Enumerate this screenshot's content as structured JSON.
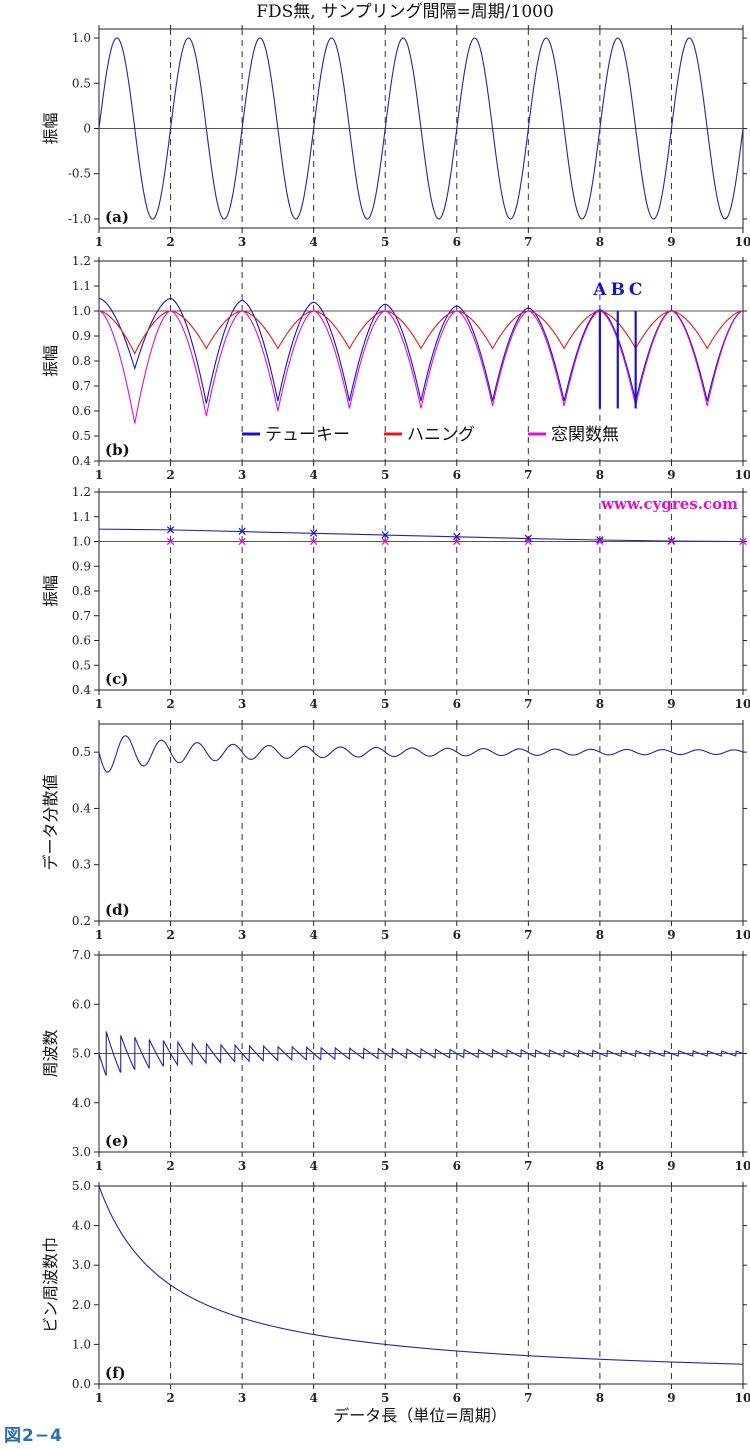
{
  "figure": {
    "title": "FDS無, サンプリング間隔=周期/1000",
    "xlabel": "データ長（単位=周期）",
    "caption": "図2−4",
    "watermark": "www.cygres.com",
    "colors": {
      "tukey": "#1515c8",
      "hanning": "#e81818",
      "none": "#e010d0",
      "curve": "#2323b0",
      "axis": "#222222",
      "grid": "#333333"
    }
  },
  "chart_data": [
    {
      "id": "a",
      "type": "line",
      "tag": "(a)",
      "ylabel": "振幅",
      "xlim": [
        1,
        10
      ],
      "ylim": [
        -1.1,
        1.1
      ],
      "xticks": [
        1,
        2,
        3,
        4,
        5,
        6,
        7,
        8,
        9,
        10
      ],
      "yticks": [
        -1.0,
        -0.5,
        0,
        0.5,
        1.0
      ],
      "ytick_labels": [
        "-1.0",
        "-0.5",
        "0",
        "0.5",
        "1.0"
      ],
      "hline": 0,
      "grid_x": "dashed",
      "series": [
        {
          "function": "sin(2*pi*x)",
          "x_range": [
            1,
            10
          ],
          "color": "#2323b0"
        }
      ]
    },
    {
      "id": "b",
      "type": "line",
      "tag": "(b)",
      "ylabel": "振幅",
      "xlim": [
        1,
        10
      ],
      "ylim": [
        0.4,
        1.2
      ],
      "xticks": [
        1,
        2,
        3,
        4,
        5,
        6,
        7,
        8,
        9,
        10
      ],
      "yticks": [
        0.4,
        0.5,
        0.6,
        0.7,
        0.8,
        0.9,
        1.0,
        1.1,
        1.2
      ],
      "ytick_labels": [
        "0.4",
        "0.5",
        "0.6",
        "0.7",
        "0.8",
        "0.9",
        "1.0",
        "1.1",
        "1.2"
      ],
      "hline": 1.0,
      "grid_x": "dashed",
      "legend": [
        {
          "label": "テューキー",
          "color": "#1515c8"
        },
        {
          "label": "ハニング",
          "color": "#e81818"
        },
        {
          "label": "窓関数無",
          "color": "#e010d0"
        }
      ],
      "markers": [
        {
          "label": "A",
          "x": 8.0
        },
        {
          "label": "B",
          "x": 8.25
        },
        {
          "label": "C",
          "x": 8.5
        }
      ],
      "marker_line_bottom": 0.61,
      "series": [
        {
          "name": "テューキー",
          "color": "#1515c8",
          "peaks": [
            [
              1,
              1.05
            ],
            [
              2,
              1.05
            ],
            [
              3,
              1.042
            ],
            [
              4,
              1.035
            ],
            [
              5,
              1.027
            ],
            [
              6,
              1.02
            ],
            [
              7,
              1.012
            ],
            [
              8,
              1.005
            ],
            [
              9,
              1.002
            ],
            [
              10,
              1.0
            ]
          ],
          "troughs": [
            [
              1.5,
              0.77
            ],
            [
              2.5,
              0.63
            ],
            [
              3.5,
              0.64
            ],
            [
              4.5,
              0.64
            ],
            [
              5.5,
              0.64
            ],
            [
              6.5,
              0.64
            ],
            [
              7.5,
              0.64
            ],
            [
              8.5,
              0.64
            ],
            [
              9.5,
              0.64
            ]
          ]
        },
        {
          "name": "ハニング",
          "color": "#e81818",
          "peaks": [
            [
              1,
              1.0
            ],
            [
              2,
              1.0
            ],
            [
              3,
              1.0
            ],
            [
              4,
              1.0
            ],
            [
              5,
              1.0
            ],
            [
              6,
              1.0
            ],
            [
              7,
              1.0
            ],
            [
              8,
              1.0
            ],
            [
              9,
              1.0
            ],
            [
              10,
              1.0
            ]
          ],
          "troughs": [
            [
              1.5,
              0.83
            ],
            [
              2.5,
              0.85
            ],
            [
              3.5,
              0.85
            ],
            [
              4.5,
              0.85
            ],
            [
              5.5,
              0.85
            ],
            [
              6.5,
              0.85
            ],
            [
              7.5,
              0.85
            ],
            [
              8.5,
              0.85
            ],
            [
              9.5,
              0.85
            ]
          ]
        },
        {
          "name": "窓関数無",
          "color": "#e010d0",
          "peaks": [
            [
              1,
              1.0
            ],
            [
              2,
              1.0
            ],
            [
              3,
              1.0
            ],
            [
              4,
              1.0
            ],
            [
              5,
              1.0
            ],
            [
              6,
              1.0
            ],
            [
              7,
              1.0
            ],
            [
              8,
              1.0
            ],
            [
              9,
              1.0
            ],
            [
              10,
              1.0
            ]
          ],
          "troughs": [
            [
              1.5,
              0.55
            ],
            [
              2.5,
              0.58
            ],
            [
              3.5,
              0.6
            ],
            [
              4.5,
              0.61
            ],
            [
              5.5,
              0.61
            ],
            [
              6.5,
              0.62
            ],
            [
              7.5,
              0.62
            ],
            [
              8.5,
              0.62
            ],
            [
              9.5,
              0.62
            ]
          ]
        }
      ]
    },
    {
      "id": "c",
      "type": "scatter",
      "tag": "(c)",
      "ylabel": "振幅",
      "xlim": [
        1,
        10
      ],
      "ylim": [
        0.4,
        1.2
      ],
      "xticks": [
        1,
        2,
        3,
        4,
        5,
        6,
        7,
        8,
        9,
        10
      ],
      "yticks": [
        0.4,
        0.5,
        0.6,
        0.7,
        0.8,
        0.9,
        1.0,
        1.1,
        1.2
      ],
      "ytick_labels": [
        "0.4",
        "0.5",
        "0.6",
        "0.7",
        "0.8",
        "0.9",
        "1.0",
        "1.1",
        "1.2"
      ],
      "hline": 1.0,
      "grid_x": "dashed",
      "envelope": {
        "color": "#2323b0",
        "points": [
          [
            1,
            1.05
          ],
          [
            2,
            1.047
          ],
          [
            3,
            1.04
          ],
          [
            4,
            1.033
          ],
          [
            5,
            1.026
          ],
          [
            6,
            1.019
          ],
          [
            7,
            1.012
          ],
          [
            8,
            1.006
          ],
          [
            9,
            1.002
          ],
          [
            10,
            1.0
          ]
        ]
      },
      "series": [
        {
          "name": "テューキー",
          "color": "#1515c8",
          "x": [
            2,
            3,
            4,
            5,
            6,
            7,
            8,
            9
          ],
          "y": [
            1.047,
            1.041,
            1.034,
            1.027,
            1.02,
            1.013,
            1.007,
            1.003
          ]
        },
        {
          "name": "窓関数無",
          "color": "#e010d0",
          "x": [
            2,
            3,
            4,
            5,
            6,
            7,
            8,
            9,
            10
          ],
          "y": [
            1.0,
            1.0,
            1.0,
            1.0,
            1.0,
            1.0,
            1.0,
            1.0,
            1.0
          ]
        }
      ]
    },
    {
      "id": "d",
      "type": "line",
      "tag": "(d)",
      "ylabel": "データ分散値",
      "xlim": [
        1,
        10
      ],
      "ylim": [
        0.2,
        0.55
      ],
      "xticks": [
        1,
        2,
        3,
        4,
        5,
        6,
        7,
        8,
        9,
        10
      ],
      "yticks": [
        0.2,
        0.3,
        0.4,
        0.5
      ],
      "ytick_labels": [
        "0.2",
        "0.3",
        "0.4",
        "0.5"
      ],
      "grid_x": "dashed",
      "series": [
        {
          "function": "0.5 - sin(4*pi*x)/(8*pi*x)",
          "x_range": [
            1,
            10
          ],
          "color": "#2323b0"
        }
      ]
    },
    {
      "id": "e",
      "type": "line",
      "tag": "(e)",
      "ylabel": "周波数",
      "xlim": [
        1,
        10
      ],
      "ylim": [
        3.0,
        7.0
      ],
      "xticks": [
        1,
        2,
        3,
        4,
        5,
        6,
        7,
        8,
        9,
        10
      ],
      "yticks": [
        3.0,
        4.0,
        5.0,
        6.0,
        7.0
      ],
      "ytick_labels": [
        "3.0",
        "4.0",
        "5.0",
        "6.0",
        "7.0"
      ],
      "hline": 5.0,
      "grid_x": "dashed",
      "series": [
        {
          "function": "round(5*x)/x",
          "x_range": [
            1,
            10
          ],
          "color": "#2323b0"
        }
      ]
    },
    {
      "id": "f",
      "type": "line",
      "tag": "(f)",
      "ylabel": "ビン周波数巾",
      "xlim": [
        1,
        10
      ],
      "ylim": [
        0,
        5.0
      ],
      "xticks": [
        1,
        2,
        3,
        4,
        5,
        6,
        7,
        8,
        9,
        10
      ],
      "yticks": [
        0,
        1.0,
        2.0,
        3.0,
        4.0,
        5.0
      ],
      "ytick_labels": [
        "0.0",
        "1.0",
        "2.0",
        "3.0",
        "4.0",
        "5.0"
      ],
      "grid_x": "dashed",
      "series": [
        {
          "function": "5/x",
          "x_range": [
            1,
            10
          ],
          "color": "#2323b0"
        }
      ]
    }
  ]
}
